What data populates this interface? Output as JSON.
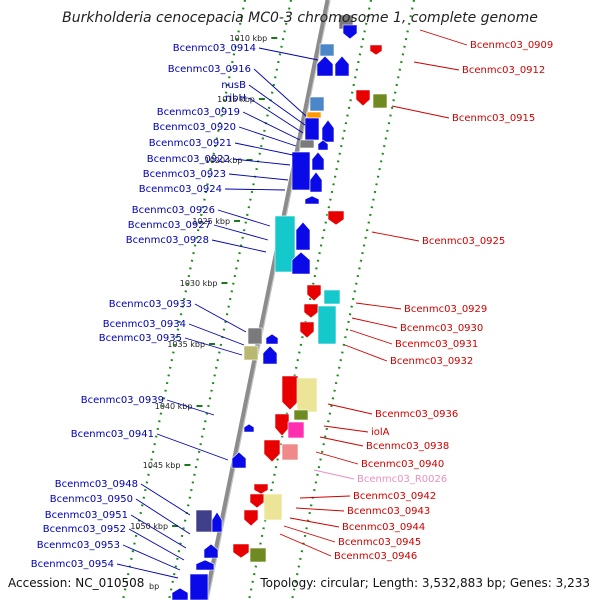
{
  "title": "Burkholderia cenocepacia MC0-3 chromosome 1, complete genome",
  "footer": {
    "accession": "Accession: NC_010508",
    "bp_partial": "bp",
    "topology": "Topology: circular; Length: 3,532,883 bp; Genes: 3,233"
  },
  "colors": {
    "forward_label": "#0000b0",
    "reverse_label": "#d00000",
    "rna_label": "#e890c0",
    "backbone": "#8c8c8c",
    "tick": "#1a7a1a",
    "dots": "#1a8a1a"
  },
  "scale_labels": [
    "1010 kbp",
    "1015 kbp",
    "1020 kbp",
    "1025 kbp",
    "1030 kbp",
    "1035 kbp",
    "1040 kbp",
    "1045 kbp",
    "1050 kbp"
  ],
  "forward_genes": [
    "Bcenmc03_0914",
    "Bcenmc03_0916",
    "nusB",
    "ribH",
    "Bcenmc03_0919",
    "Bcenmc03_0920",
    "Bcenmc03_0921",
    "Bcenmc03_0922",
    "Bcenmc03_0923",
    "Bcenmc03_0924",
    "Bcenmc03_0926",
    "Bcenmc03_0927",
    "Bcenmc03_0928",
    "Bcenmc03_0933",
    "Bcenmc03_0934",
    "Bcenmc03_0935",
    "Bcenmc03_0939",
    "Bcenmc03_0941",
    "Bcenmc03_0948",
    "Bcenmc03_0950",
    "Bcenmc03_0951",
    "Bcenmc03_0952",
    "Bcenmc03_0953",
    "Bcenmc03_0954"
  ],
  "reverse_genes": [
    "Bcenmc03_0909",
    "Bcenmc03_0912",
    "Bcenmc03_0915",
    "Bcenmc03_0925",
    "Bcenmc03_0929",
    "Bcenmc03_0930",
    "Bcenmc03_0931",
    "Bcenmc03_0932",
    "Bcenmc03_0936",
    "iolA",
    "Bcenmc03_0938",
    "Bcenmc03_0940",
    "Bcenmc03_R0026",
    "Bcenmc03_0942",
    "Bcenmc03_0943",
    "Bcenmc03_0944",
    "Bcenmc03_0945",
    "Bcenmc03_0946"
  ]
}
